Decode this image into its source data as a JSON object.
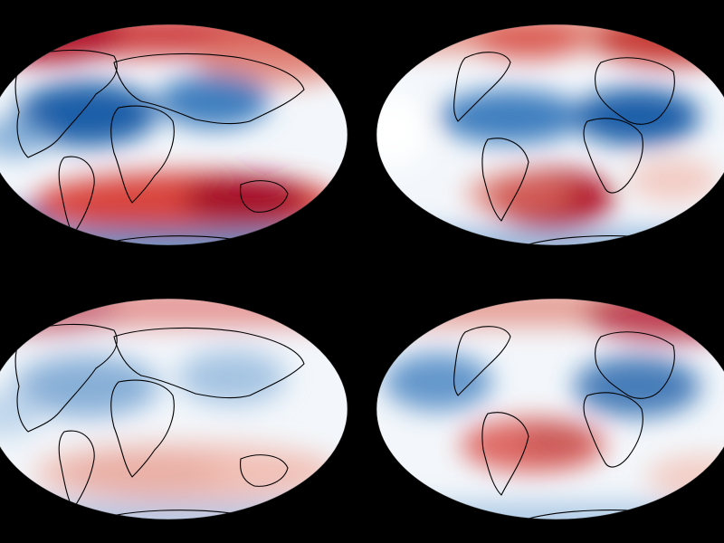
{
  "figure": {
    "background": "#000000",
    "projection": "mollweide",
    "colormap": {
      "low": "#1f5fa8",
      "mid": "#ffffff",
      "high": "#b2182b"
    },
    "coastline_color": "#000000",
    "panels": [
      {
        "id": "top-left",
        "pattern": "view-a",
        "intensity": 1.0
      },
      {
        "id": "top-right",
        "pattern": "view-b",
        "intensity": 1.0
      },
      {
        "id": "bottom-left",
        "pattern": "view-a",
        "intensity": 0.6
      },
      {
        "id": "bottom-right",
        "pattern": "view-c",
        "intensity": 0.8
      }
    ]
  }
}
